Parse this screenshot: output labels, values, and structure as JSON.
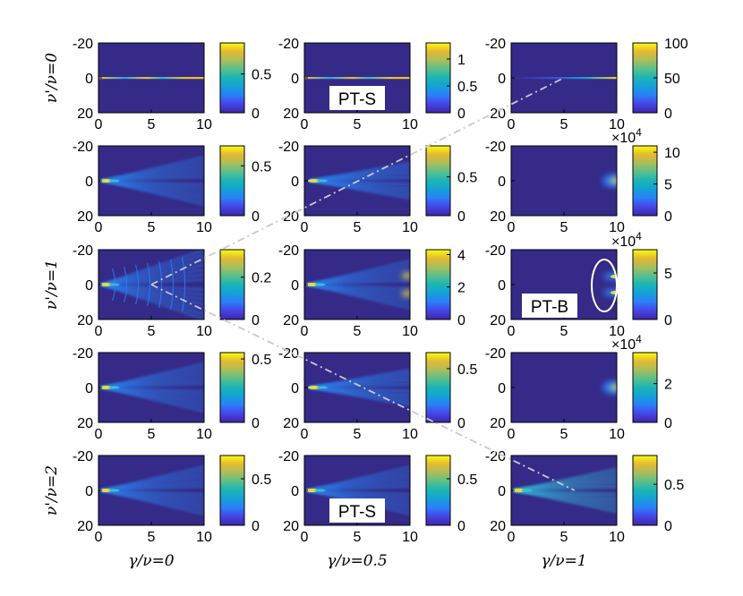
{
  "figure": {
    "column_labels": [
      "γ/ν=0",
      "γ/ν=0.5",
      "γ/ν=1"
    ],
    "row_labels": [
      "ν'/ν=0",
      "",
      "ν'/ν=1",
      "",
      "ν'/ν=2"
    ],
    "x_tick_labels": [
      "0",
      "5",
      "10"
    ],
    "y_tick_labels": [
      "-20",
      "0",
      "20"
    ],
    "colors": {
      "background": "#352a87",
      "colormap": [
        "#3e26a8",
        "#4744e6",
        "#2c7ef9",
        "#15a0d8",
        "#1ab5b5",
        "#59bf8c",
        "#a8be5d",
        "#e4b933",
        "#f9fb0e"
      ],
      "annotation_line": "#c8c8d6",
      "annotation_circle": "#ffffff"
    }
  },
  "chart_data": [
    {
      "type": "heatmap",
      "row": 0,
      "col": 0,
      "pattern": "thin-line",
      "xlim": [
        0,
        10
      ],
      "ylim": [
        -20,
        20
      ],
      "colorbar_ticks": [
        "0",
        "0.5"
      ],
      "colorbar_max": 0.9
    },
    {
      "type": "heatmap",
      "row": 0,
      "col": 1,
      "pattern": "thin-line",
      "xlim": [
        0,
        10
      ],
      "ylim": [
        -20,
        20
      ],
      "colorbar_ticks": [
        "0",
        "0.5",
        "1"
      ],
      "colorbar_max": 1.3,
      "tag": "PT-S"
    },
    {
      "type": "heatmap",
      "row": 0,
      "col": 2,
      "pattern": "thin-line-fading",
      "xlim": [
        0,
        10
      ],
      "ylim": [
        -20,
        20
      ],
      "colorbar_ticks": [
        "0",
        "50",
        "100"
      ],
      "colorbar_max": 100
    },
    {
      "type": "heatmap",
      "row": 1,
      "col": 0,
      "pattern": "fan",
      "xlim": [
        0,
        10
      ],
      "ylim": [
        -20,
        20
      ],
      "colorbar_ticks": [
        "0",
        "0.5"
      ],
      "colorbar_max": 0.7
    },
    {
      "type": "heatmap",
      "row": 1,
      "col": 1,
      "pattern": "fan-narrow",
      "xlim": [
        0,
        10
      ],
      "ylim": [
        -20,
        20
      ],
      "colorbar_ticks": [
        "0",
        "0.5"
      ],
      "colorbar_max": 0.9
    },
    {
      "type": "heatmap",
      "row": 1,
      "col": 2,
      "pattern": "edge-blob",
      "xlim": [
        0,
        10
      ],
      "ylim": [
        -20,
        20
      ],
      "colorbar_ticks": [
        "0",
        "5",
        "10"
      ],
      "colorbar_max": 11,
      "colorbar_exponent": "×10",
      "colorbar_exponent_power": "4"
    },
    {
      "type": "heatmap",
      "row": 2,
      "col": 0,
      "pattern": "wide-fan",
      "xlim": [
        0,
        10
      ],
      "ylim": [
        -20,
        20
      ],
      "colorbar_ticks": [
        "0",
        "0.2"
      ],
      "colorbar_max": 0.33
    },
    {
      "type": "heatmap",
      "row": 2,
      "col": 1,
      "pattern": "fan-bright-end",
      "xlim": [
        0,
        10
      ],
      "ylim": [
        -20,
        20
      ],
      "colorbar_ticks": [
        "0",
        "2",
        "4"
      ],
      "colorbar_max": 4.3
    },
    {
      "type": "heatmap",
      "row": 2,
      "col": 2,
      "pattern": "edge-split",
      "xlim": [
        0,
        10
      ],
      "ylim": [
        -20,
        20
      ],
      "colorbar_ticks": [
        "0",
        "5"
      ],
      "colorbar_max": 7.5,
      "colorbar_exponent": "×10",
      "colorbar_exponent_power": "4",
      "tag": "PT-B"
    },
    {
      "type": "heatmap",
      "row": 3,
      "col": 0,
      "pattern": "fan",
      "xlim": [
        0,
        10
      ],
      "ylim": [
        -20,
        20
      ],
      "colorbar_ticks": [
        "0",
        "0.5"
      ],
      "colorbar_max": 0.55
    },
    {
      "type": "heatmap",
      "row": 3,
      "col": 1,
      "pattern": "fan-narrow",
      "xlim": [
        0,
        10
      ],
      "ylim": [
        -20,
        20
      ],
      "colorbar_ticks": [
        "0",
        "0.5"
      ],
      "colorbar_max": 0.65
    },
    {
      "type": "heatmap",
      "row": 3,
      "col": 2,
      "pattern": "edge-blob",
      "xlim": [
        0,
        10
      ],
      "ylim": [
        -20,
        20
      ],
      "colorbar_ticks": [
        "0",
        "2"
      ],
      "colorbar_max": 3.6,
      "colorbar_exponent": "×10",
      "colorbar_exponent_power": "4"
    },
    {
      "type": "heatmap",
      "row": 4,
      "col": 0,
      "pattern": "fan",
      "xlim": [
        0,
        10
      ],
      "ylim": [
        -20,
        20
      ],
      "colorbar_ticks": [
        "0",
        "0.5"
      ],
      "colorbar_max": 0.75
    },
    {
      "type": "heatmap",
      "row": 4,
      "col": 1,
      "pattern": "fan",
      "xlim": [
        0,
        10
      ],
      "ylim": [
        -20,
        20
      ],
      "colorbar_ticks": [
        "0",
        "0.5"
      ],
      "colorbar_max": 0.75,
      "tag": "PT-S"
    },
    {
      "type": "heatmap",
      "row": 4,
      "col": 2,
      "pattern": "fan-bright",
      "xlim": [
        0,
        10
      ],
      "ylim": [
        -20,
        20
      ],
      "colorbar_ticks": [
        "0",
        "0.5"
      ],
      "colorbar_max": 0.85
    }
  ]
}
